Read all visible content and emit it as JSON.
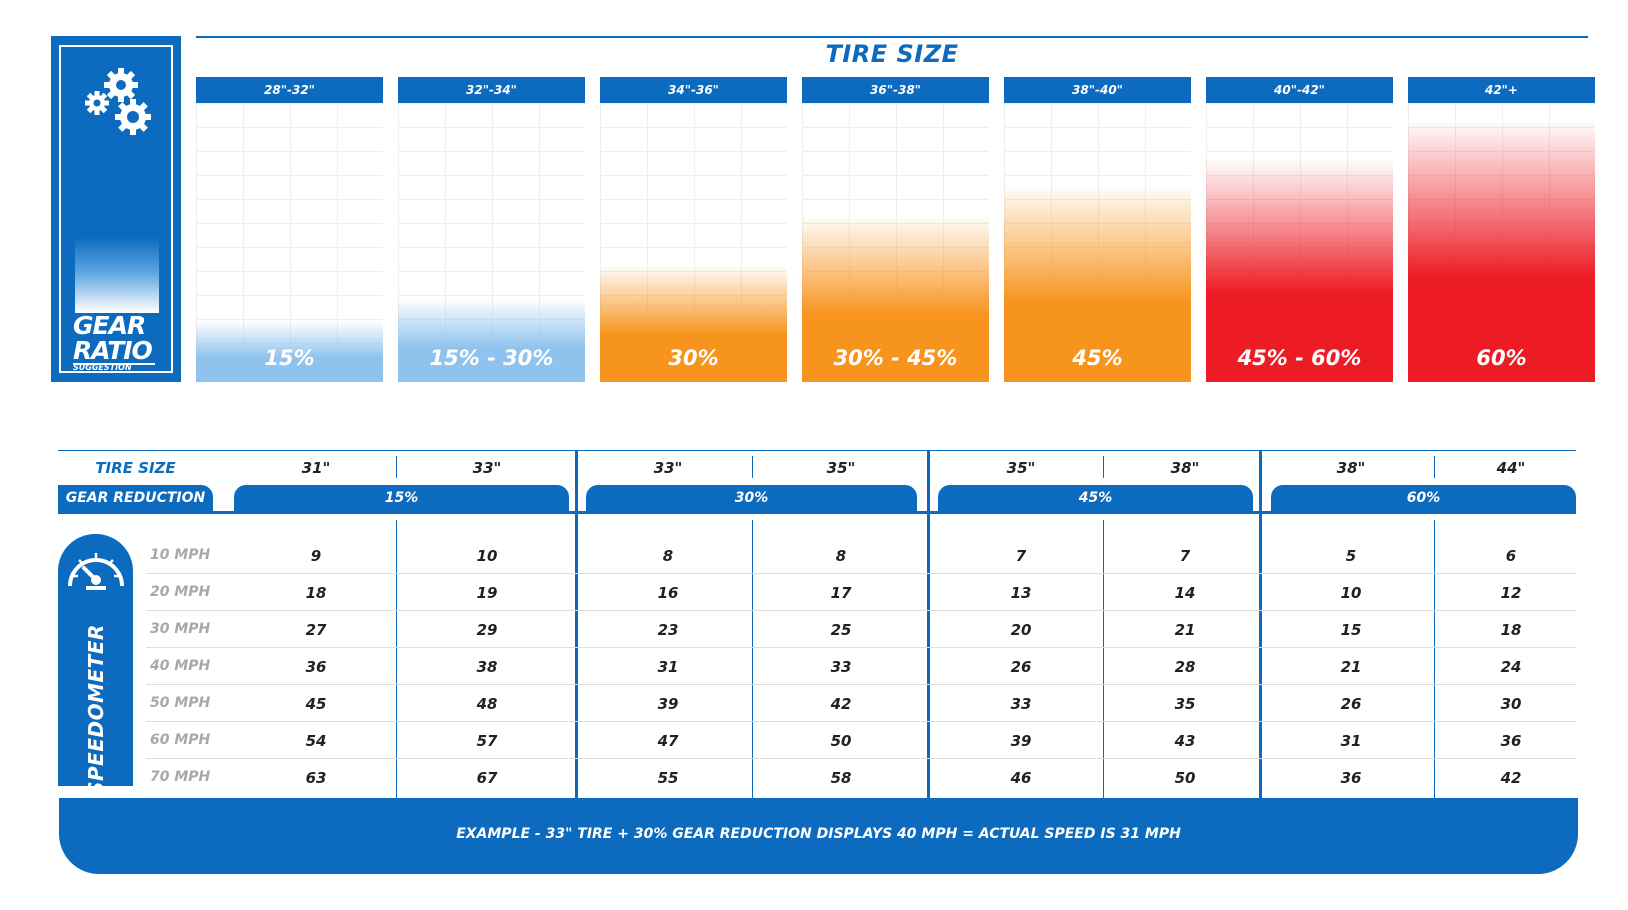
{
  "logo": {
    "title_line1": "GEAR",
    "title_line2": "RATIO",
    "subtitle": "SUGGESTION",
    "icon": "gears-icon"
  },
  "chart_data": {
    "type": "bar",
    "title": "TIRE SIZE",
    "categories": [
      "28\"-32\"",
      "32\"-34\"",
      "34\"-36\"",
      "36\"-38\"",
      "38\"-40\"",
      "40\"-42\"",
      "42\"+"
    ],
    "labels": [
      "15%",
      "15% - 30%",
      "30%",
      "30% - 45%",
      "45%",
      "45% - 60%",
      "60%"
    ],
    "values": [
      15,
      22.5,
      30,
      37.5,
      45,
      52.5,
      60
    ],
    "colors": [
      "#8fc3ee",
      "#8fc3ee",
      "#f7941d",
      "#f7941d",
      "#f7941d",
      "#ed1c24",
      "#ed1c24"
    ],
    "ylim": [
      0,
      60
    ],
    "grid": true
  },
  "table": {
    "tire_size_label": "TIRE SIZE",
    "gear_reduction_label": "GEAR REDUCTION",
    "tire_sizes": [
      "31\"",
      "33\"",
      "33\"",
      "35\"",
      "35\"",
      "38\"",
      "38\"",
      "44\""
    ],
    "groups": [
      "15%",
      "30%",
      "45%",
      "60%"
    ],
    "speedometer_label": "SPEEDOMETER",
    "speedometer_icon": "speedometer-icon",
    "rows": [
      {
        "mph": "10 MPH",
        "values": [
          "9",
          "10",
          "8",
          "8",
          "7",
          "7",
          "5",
          "6"
        ]
      },
      {
        "mph": "20 MPH",
        "values": [
          "18",
          "19",
          "16",
          "17",
          "13",
          "14",
          "10",
          "12"
        ]
      },
      {
        "mph": "30 MPH",
        "values": [
          "27",
          "29",
          "23",
          "25",
          "20",
          "21",
          "15",
          "18"
        ]
      },
      {
        "mph": "40 MPH",
        "values": [
          "36",
          "38",
          "31",
          "33",
          "26",
          "28",
          "21",
          "24"
        ]
      },
      {
        "mph": "50 MPH",
        "values": [
          "45",
          "48",
          "39",
          "42",
          "33",
          "35",
          "26",
          "30"
        ]
      },
      {
        "mph": "60 MPH",
        "values": [
          "54",
          "57",
          "47",
          "50",
          "39",
          "43",
          "31",
          "36"
        ]
      },
      {
        "mph": "70 MPH",
        "values": [
          "63",
          "67",
          "55",
          "58",
          "46",
          "50",
          "36",
          "42"
        ]
      }
    ]
  },
  "example": "EXAMPLE - 33\" TIRE + 30% GEAR REDUCTION DISPLAYS 40 MPH = ACTUAL SPEED IS 31 MPH"
}
